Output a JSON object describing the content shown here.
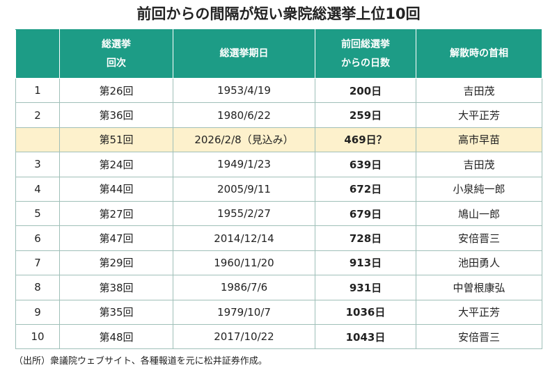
{
  "title": "前回からの間隔が短い衆院総選挙上位10回",
  "table": {
    "header": [
      [
        "総選挙",
        "回次"
      ],
      [
        "総選挙期日"
      ],
      [
        "前回総選挙",
        "からの日数"
      ],
      [
        "解散時の首相"
      ]
    ],
    "rows": [
      {
        "rank": 1,
        "cells": [
          "第26回",
          "1953/4/19",
          "200日",
          "吉田茂"
        ]
      },
      {
        "rank": 2,
        "cells": [
          "第36回",
          "1980/6/22",
          "259日",
          "大平正芳"
        ]
      },
      {
        "highlight": true,
        "cells": [
          "第51回",
          "2026/2/8（見込み）",
          "469日？",
          "高市早苗"
        ]
      },
      {
        "rank": 3,
        "cells": [
          "第24回",
          "1949/1/23",
          "639日",
          "吉田茂"
        ]
      },
      {
        "rank": 4,
        "cells": [
          "第44回",
          "2005/9/11",
          "672日",
          "小泉純一郎"
        ]
      },
      {
        "rank": 5,
        "cells": [
          "第27回",
          "1955/2/27",
          "679日",
          "鳩山一郎"
        ]
      },
      {
        "rank": 6,
        "cells": [
          "第47回",
          "2014/12/14",
          "728日",
          "安倍晋三"
        ]
      },
      {
        "rank": 7,
        "cells": [
          "第29回",
          "1960/11/20",
          "913日",
          "池田勇人"
        ]
      },
      {
        "rank": 8,
        "cells": [
          "第38回",
          "1986/7/6",
          "931日",
          "中曽根康弘"
        ]
      },
      {
        "rank": 9,
        "cells": [
          "第35回",
          "1979/10/7",
          "1036日",
          "大平正芳"
        ]
      },
      {
        "rank": 10,
        "cells": [
          "第48回",
          "2017/10/22",
          "1043日",
          "安倍晋三"
        ]
      }
    ]
  },
  "footer": "（出所）衆議院ウェブサイト、各種報道を元に松井証券作成。"
}
